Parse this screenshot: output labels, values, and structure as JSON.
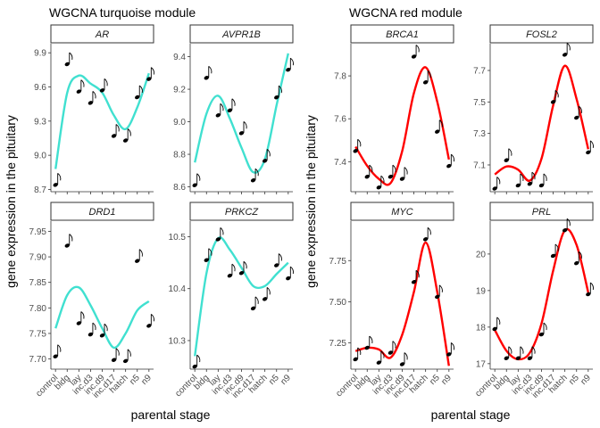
{
  "chart_data": [
    {
      "type": "line",
      "title": "WGCNA turquoise module",
      "xlabel": "parental stage",
      "ylabel": "gene expression  in the pituitary",
      "x_categories": [
        "control",
        "bldg",
        "lay",
        "inc.d3",
        "inc.d9",
        "inc.d17",
        "hatch",
        "n5",
        "n9"
      ],
      "line_color": "#40E0D0",
      "facets": [
        {
          "name": "AR",
          "yticks": [
            8.7,
            9.0,
            9.3,
            9.6,
            9.9
          ],
          "ylim": [
            8.68,
            9.98
          ],
          "points": [
            8.74,
            9.8,
            9.56,
            9.46,
            9.57,
            9.17,
            9.13,
            9.51,
            9.67
          ],
          "smooth": [
            8.88,
            9.55,
            9.7,
            9.63,
            9.55,
            9.35,
            9.23,
            9.42,
            9.72
          ]
        },
        {
          "name": "AVPR1B",
          "yticks": [
            8.6,
            8.8,
            9.0,
            9.2,
            9.4
          ],
          "ylim": [
            8.57,
            9.48
          ],
          "points": [
            8.61,
            9.27,
            9.04,
            9.07,
            8.93,
            8.64,
            8.76,
            9.15,
            9.32
          ],
          "smooth": [
            8.75,
            9.05,
            9.16,
            9.02,
            8.84,
            8.69,
            8.77,
            9.1,
            9.42
          ]
        },
        {
          "name": "DRD1",
          "yticks": [
            7.7,
            7.75,
            7.8,
            7.85,
            7.9,
            7.95
          ],
          "ylim": [
            7.68,
            7.97
          ],
          "points": [
            7.705,
            7.922,
            7.77,
            7.748,
            7.746,
            7.698,
            7.696,
            7.892,
            7.765
          ],
          "smooth": [
            7.76,
            7.825,
            7.84,
            7.805,
            7.76,
            7.722,
            7.75,
            7.795,
            7.813
          ]
        },
        {
          "name": "PRKCZ",
          "yticks": [
            10.3,
            10.4,
            10.5
          ],
          "ylim": [
            10.245,
            10.53
          ],
          "points": [
            10.25,
            10.455,
            10.495,
            10.425,
            10.43,
            10.362,
            10.38,
            10.445,
            10.42
          ],
          "smooth": [
            10.27,
            10.43,
            10.497,
            10.475,
            10.44,
            10.405,
            10.405,
            10.428,
            10.45
          ]
        }
      ]
    },
    {
      "type": "line",
      "title": "WGCNA red module",
      "xlabel": "parental stage",
      "ylabel": "gene expression  in the pituitary",
      "x_categories": [
        "control",
        "bldg",
        "lay",
        "inc.d3",
        "inc.d9",
        "inc.d17",
        "hatch",
        "n5",
        "n9"
      ],
      "line_color": "#FF0000",
      "facets": [
        {
          "name": "BRCA1",
          "yticks": [
            7.4,
            7.6,
            7.8
          ],
          "ylim": [
            7.26,
            7.95
          ],
          "points": [
            7.45,
            7.33,
            7.28,
            7.33,
            7.32,
            7.89,
            7.77,
            7.54,
            7.38
          ],
          "smooth": [
            7.47,
            7.38,
            7.32,
            7.3,
            7.45,
            7.72,
            7.84,
            7.68,
            7.41
          ]
        },
        {
          "name": "FOSL2",
          "yticks": [
            7.1,
            7.3,
            7.5,
            7.7
          ],
          "ylim": [
            6.93,
            7.87
          ],
          "points": [
            6.95,
            7.13,
            6.97,
            6.98,
            6.97,
            7.5,
            7.8,
            7.4,
            7.18
          ],
          "smooth": [
            7.04,
            7.09,
            7.07,
            7.0,
            7.14,
            7.48,
            7.73,
            7.52,
            7.2
          ]
        },
        {
          "name": "MYC",
          "yticks": [
            7.25,
            7.5,
            7.75
          ],
          "ylim": [
            7.09,
            7.99
          ],
          "points": [
            7.15,
            7.22,
            7.13,
            7.19,
            7.12,
            7.62,
            7.88,
            7.53,
            7.18
          ],
          "smooth": [
            7.2,
            7.22,
            7.21,
            7.16,
            7.3,
            7.56,
            7.86,
            7.56,
            7.11
          ]
        },
        {
          "name": "PRL",
          "yticks": [
            17,
            18,
            19,
            20
          ],
          "ylim": [
            16.85,
            20.9
          ],
          "points": [
            17.95,
            17.15,
            17.15,
            17.15,
            17.8,
            19.95,
            20.65,
            19.75,
            18.9
          ],
          "smooth": [
            17.92,
            17.35,
            17.12,
            17.3,
            18.1,
            19.55,
            20.65,
            20.25,
            18.95
          ]
        }
      ]
    }
  ]
}
